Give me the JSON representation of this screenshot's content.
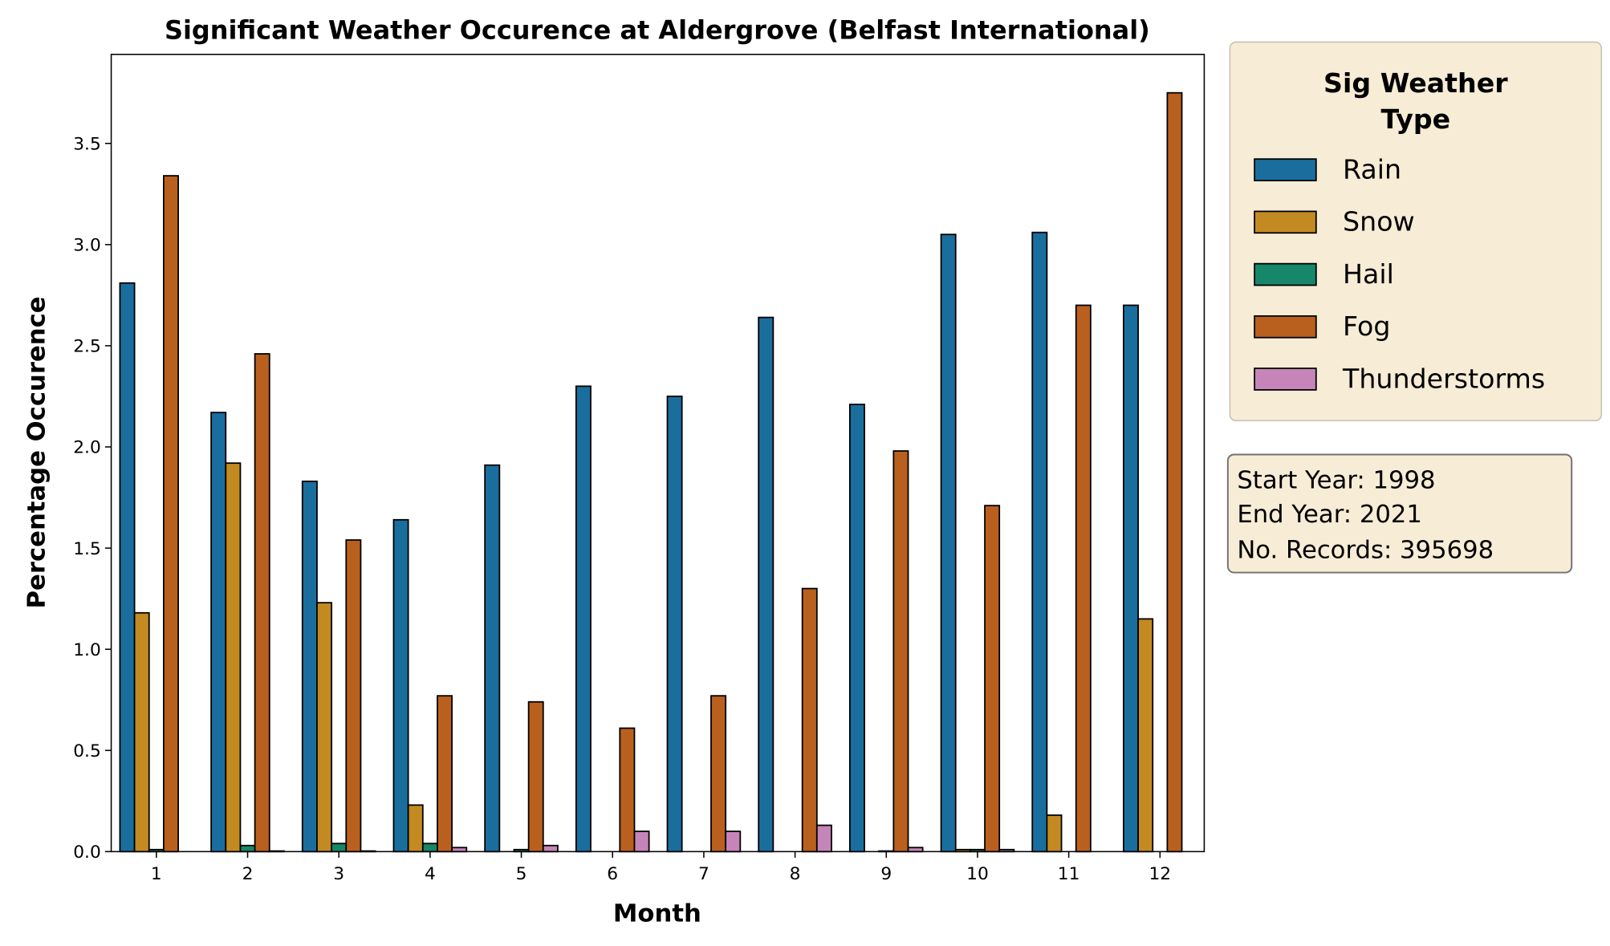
{
  "chart_data": {
    "type": "bar",
    "title": "Significant Weather Occurence at Aldergrove (Belfast International)",
    "xlabel": "Month",
    "ylabel": "Percentage Occurence",
    "categories": [
      "1",
      "2",
      "3",
      "4",
      "5",
      "6",
      "7",
      "8",
      "9",
      "10",
      "11",
      "12"
    ],
    "ylim": [
      0,
      3.94
    ],
    "yticks": [
      "0.0",
      "0.5",
      "1.0",
      "1.5",
      "2.0",
      "2.5",
      "3.0",
      "3.5"
    ],
    "grid": false,
    "legend": {
      "title": "Sig Weather Type",
      "placement": "outside-right-top"
    },
    "series": [
      {
        "name": "Rain",
        "color": "#1a6e9e",
        "values": [
          2.81,
          2.17,
          1.83,
          1.64,
          1.91,
          2.3,
          2.25,
          2.64,
          2.21,
          3.05,
          3.06,
          2.7
        ]
      },
      {
        "name": "Snow",
        "color": "#c48a22",
        "values": [
          1.18,
          1.92,
          1.23,
          0.23,
          0,
          0,
          0,
          0,
          0,
          0.01,
          0.18,
          1.15
        ]
      },
      {
        "name": "Hail",
        "color": "#17876a",
        "values": [
          0.01,
          0.03,
          0.04,
          0.04,
          0.01,
          0,
          0,
          0,
          0.003,
          0.01,
          0,
          0
        ]
      },
      {
        "name": "Fog",
        "color": "#b9601e",
        "values": [
          3.34,
          2.46,
          1.54,
          0.77,
          0.74,
          0.61,
          0.77,
          1.3,
          1.98,
          1.71,
          2.7,
          3.75
        ]
      },
      {
        "name": "Thunderstorms",
        "color": "#c585b8",
        "values": [
          0,
          0.003,
          0.003,
          0.02,
          0.03,
          0.1,
          0.1,
          0.13,
          0.02,
          0.01,
          0,
          0
        ]
      }
    ],
    "annotation": [
      "Start Year: 1998",
      "End Year: 2021",
      "No. Records: 395698"
    ]
  }
}
